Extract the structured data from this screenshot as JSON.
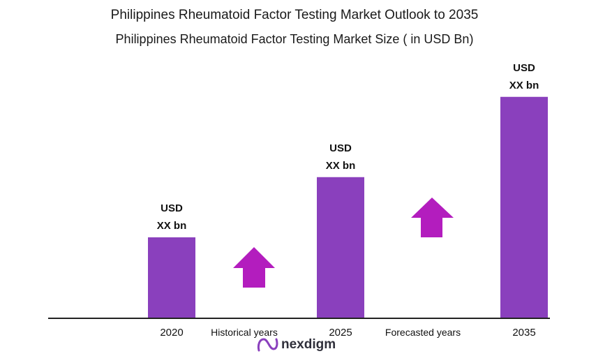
{
  "chart_data": {
    "type": "bar",
    "title": "Philippines Rheumatoid Factor Testing Market Outlook to 2035",
    "subtitle": "Philippines Rheumatoid Factor Testing Market Size  ( in USD Bn)",
    "categories": [
      "2020",
      "2025",
      "2035"
    ],
    "values": [
      1.0,
      1.75,
      2.75
    ],
    "data_labels": [
      {
        "line1": "USD",
        "line2": "XX bn"
      },
      {
        "line1": "USD",
        "line2": "XX bn"
      },
      {
        "line1": "USD",
        "line2": "XX bn"
      }
    ],
    "period_labels": [
      "Historical years",
      "Forecasted years"
    ],
    "grid": false,
    "legend": "none"
  },
  "colors": {
    "bar": "#8a40bd",
    "arrow": "#b31dbe",
    "axis": "#222222",
    "text": "#111111"
  },
  "icons": [
    "up-arrow-icon",
    "up-arrow-icon",
    "nexdigm-logo-icon"
  ],
  "logo": {
    "text": "nexdigm"
  }
}
